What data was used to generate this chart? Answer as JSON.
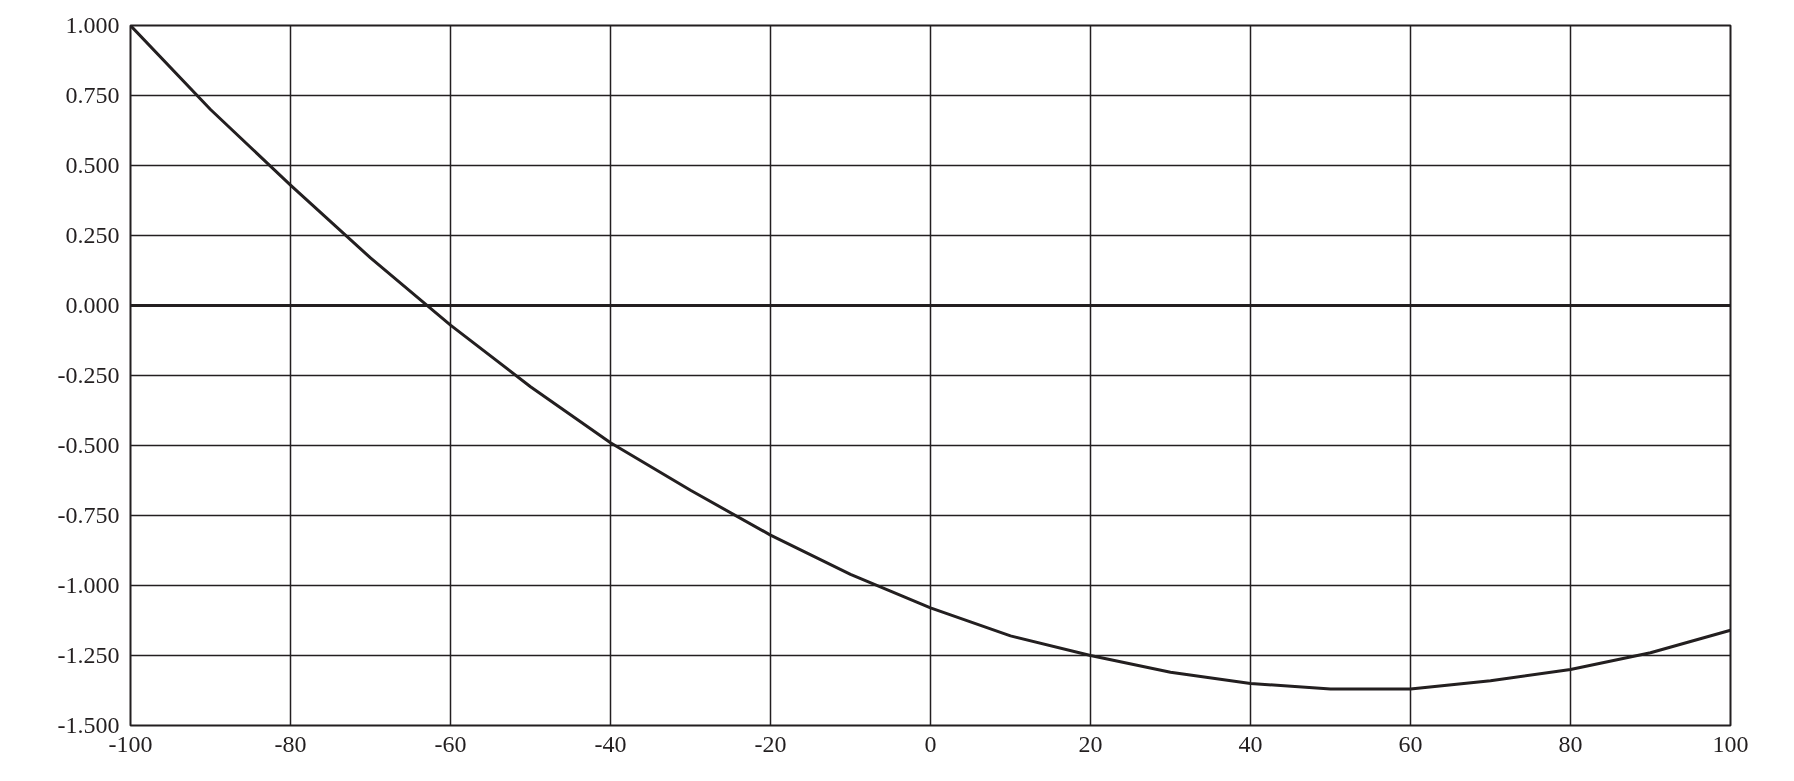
{
  "chart_data": {
    "type": "line",
    "x": [
      -100,
      -90,
      -80,
      -70,
      -60,
      -50,
      -40,
      -30,
      -20,
      -10,
      0,
      10,
      20,
      30,
      40,
      50,
      60,
      70,
      80,
      90,
      100
    ],
    "series": [
      {
        "color": "#231f20",
        "values": [
          1.0,
          0.7,
          0.43,
          0.17,
          -0.07,
          -0.29,
          -0.49,
          -0.66,
          -0.82,
          -0.96,
          -1.08,
          -1.18,
          -1.25,
          -1.31,
          -1.35,
          -1.37,
          -1.37,
          -1.34,
          -1.3,
          -1.24,
          -1.16
        ]
      }
    ],
    "xlim": [
      -100,
      100
    ],
    "xticks": [
      -100,
      -80,
      -60,
      -40,
      -20,
      0,
      20,
      40,
      60,
      80,
      100
    ],
    "ylim": [
      -1.5,
      1.0
    ],
    "yticks": [
      {
        "value": -1.5,
        "label": "-1.500"
      },
      {
        "value": -1.25,
        "label": "-1.250"
      },
      {
        "value": -1.0,
        "label": "-1.000"
      },
      {
        "value": -0.75,
        "label": "-0.750"
      },
      {
        "value": -0.5,
        "label": "-0.500"
      },
      {
        "value": -0.25,
        "label": "-0.250"
      },
      {
        "value": 0,
        "label": "0.000"
      },
      {
        "value": 0.25,
        "label": "0.250"
      },
      {
        "value": 0.5,
        "label": "0.500"
      },
      {
        "value": 0.75,
        "label": "0.750"
      },
      {
        "value": 1.0,
        "label": "1.000"
      }
    ],
    "ref_lines": [
      {
        "axis": "y",
        "value": 0,
        "color": "#231f20"
      }
    ],
    "grid": true,
    "marker": "none",
    "line_style": "solid"
  }
}
